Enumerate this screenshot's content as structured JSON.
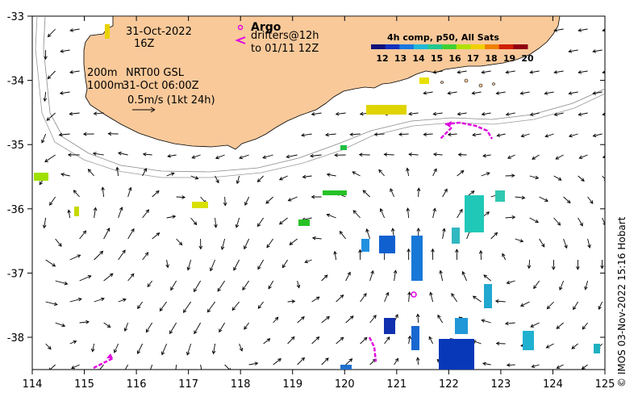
{
  "map": {
    "date": "31-Oct-2022",
    "hour": "16Z",
    "depth_200": "200m",
    "depth_1000": "1000m",
    "product": "NRT00 GSL",
    "product_time": "31-Oct 06:00Z",
    "scale_text": "0.5m/s (1kt 24h)",
    "argo_label": "Argo",
    "drifters_label": "drifters@12h",
    "drifters_to": "to 01/11 12Z",
    "colorbar_title": "4h comp, p50, All Sats",
    "colorbar_ticks": [
      "12",
      "13",
      "14",
      "15",
      "16",
      "17",
      "18",
      "19",
      "20"
    ],
    "x_ticks": [
      "114",
      "115",
      "116",
      "117",
      "118",
      "119",
      "120",
      "121",
      "122",
      "123",
      "124",
      "125"
    ],
    "y_ticks": [
      "-33",
      "-34",
      "-35",
      "-36",
      "-37",
      "-38"
    ],
    "credit": "© IMOS 03-Nov-2022 15:16 Hobart",
    "colors": {
      "land": "#f9c99a",
      "argo": "#e000e0",
      "drifter": "#e000e0"
    }
  }
}
